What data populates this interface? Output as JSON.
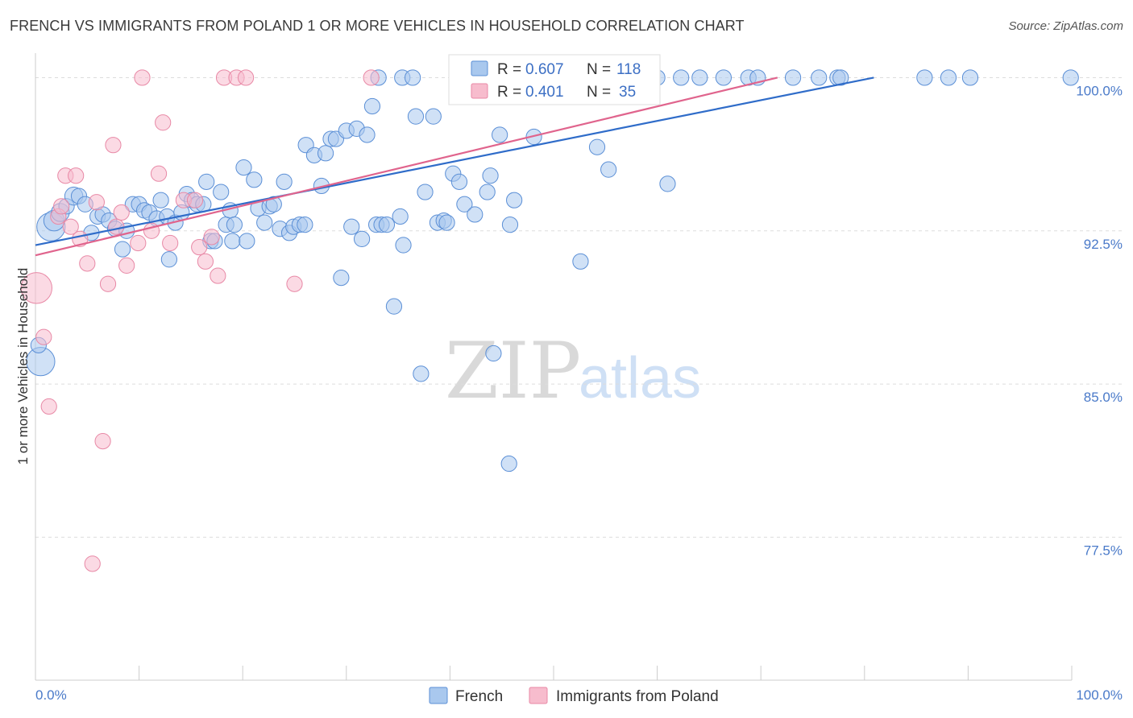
{
  "title": "FRENCH VS IMMIGRANTS FROM POLAND 1 OR MORE VEHICLES IN HOUSEHOLD CORRELATION CHART",
  "source": "Source: ZipAtlas.com",
  "watermark": {
    "zip": "ZIP",
    "atlas": "atlas"
  },
  "legend": {
    "r_label": "R =",
    "n_label": "N =",
    "french": {
      "r": "0.607",
      "n": "118"
    },
    "poland": {
      "r": "0.401",
      "n": "35"
    }
  },
  "colors": {
    "french_fill": "#a9c8ee",
    "french_stroke": "#5b8fd6",
    "french_line": "#2f6cc9",
    "poland_fill": "#f7bccd",
    "poland_stroke": "#e889a6",
    "poland_line": "#e0648d",
    "grid": "#dddddd",
    "axis_text": "#4a7ac9"
  },
  "chart_data": {
    "type": "scatter",
    "title": "FRENCH VS IMMIGRANTS FROM POLAND 1 OR MORE VEHICLES IN HOUSEHOLD CORRELATION CHART",
    "xlabel": "",
    "ylabel": "1 or more Vehicles in Household",
    "xlim": [
      0,
      100
    ],
    "ylim": [
      70.5,
      101.2
    ],
    "x_tick_labels": {
      "min": "0.0%",
      "max": "100.0%"
    },
    "y_ticks": [
      {
        "value": 100.0,
        "label": "100.0%"
      },
      {
        "value": 92.5,
        "label": "92.5%"
      },
      {
        "value": 85.0,
        "label": "85.0%"
      },
      {
        "value": 77.5,
        "label": "77.5%"
      }
    ],
    "grid": true,
    "legend_position": "top-center",
    "series": [
      {
        "name": "French",
        "trendline": {
          "x": [
            0,
            80.9
          ],
          "y": [
            91.8,
            100.0
          ]
        },
        "points": [
          [
            0.5,
            86.1,
            2.2
          ],
          [
            0.3,
            86.9,
            1.2
          ],
          [
            1.5,
            92.7,
            2.2
          ],
          [
            1.8,
            93.0,
            1.6
          ],
          [
            2.4,
            93.4,
            1.4
          ],
          [
            3.0,
            93.7,
            1.2
          ],
          [
            3.7,
            94.2,
            1.4
          ],
          [
            4.2,
            94.2,
            1.2
          ],
          [
            4.8,
            93.8,
            1.2
          ],
          [
            5.4,
            92.4,
            1.2
          ],
          [
            6.0,
            93.2,
            1.2
          ],
          [
            6.5,
            93.3,
            1.2
          ],
          [
            7.1,
            93.0,
            1.2
          ],
          [
            7.7,
            92.6,
            1.2
          ],
          [
            8.4,
            91.6,
            1.2
          ],
          [
            8.8,
            92.5,
            1.2
          ],
          [
            9.4,
            93.8,
            1.2
          ],
          [
            10.0,
            93.8,
            1.2
          ],
          [
            10.5,
            93.5,
            1.2
          ],
          [
            11.0,
            93.4,
            1.2
          ],
          [
            11.7,
            93.1,
            1.2
          ],
          [
            12.1,
            94.0,
            1.2
          ],
          [
            12.7,
            93.2,
            1.2
          ],
          [
            12.9,
            91.1,
            1.2
          ],
          [
            13.5,
            92.9,
            1.2
          ],
          [
            14.1,
            93.4,
            1.2
          ],
          [
            14.6,
            94.3,
            1.2
          ],
          [
            15.1,
            94.0,
            1.2
          ],
          [
            15.6,
            93.8,
            1.2
          ],
          [
            16.2,
            93.8,
            1.2
          ],
          [
            16.5,
            94.9,
            1.2
          ],
          [
            16.9,
            92.0,
            1.2
          ],
          [
            17.3,
            92.0,
            1.2
          ],
          [
            17.9,
            94.4,
            1.2
          ],
          [
            18.4,
            92.8,
            1.2
          ],
          [
            18.8,
            93.5,
            1.2
          ],
          [
            19.2,
            92.8,
            1.2
          ],
          [
            19.0,
            92.0,
            1.2
          ],
          [
            20.1,
            95.6,
            1.2
          ],
          [
            20.4,
            92.0,
            1.2
          ],
          [
            21.1,
            95.0,
            1.2
          ],
          [
            21.5,
            93.6,
            1.2
          ],
          [
            22.1,
            92.9,
            1.2
          ],
          [
            22.6,
            93.7,
            1.2
          ],
          [
            23.0,
            93.8,
            1.2
          ],
          [
            23.6,
            92.6,
            1.2
          ],
          [
            24.0,
            94.9,
            1.2
          ],
          [
            24.5,
            92.4,
            1.2
          ],
          [
            24.9,
            92.7,
            1.2
          ],
          [
            25.5,
            92.8,
            1.2
          ],
          [
            26.0,
            92.8,
            1.2
          ],
          [
            26.1,
            96.7,
            1.2
          ],
          [
            26.9,
            96.2,
            1.2
          ],
          [
            27.6,
            94.7,
            1.2
          ],
          [
            28.0,
            96.3,
            1.2
          ],
          [
            28.5,
            97.0,
            1.2
          ],
          [
            29.0,
            97.0,
            1.2
          ],
          [
            29.5,
            90.2,
            1.2
          ],
          [
            30.0,
            97.4,
            1.2
          ],
          [
            30.5,
            92.7,
            1.2
          ],
          [
            31.0,
            97.5,
            1.2
          ],
          [
            31.5,
            92.1,
            1.2
          ],
          [
            32.0,
            97.2,
            1.2
          ],
          [
            32.5,
            98.6,
            1.2
          ],
          [
            32.9,
            92.8,
            1.2
          ],
          [
            33.4,
            92.8,
            1.2
          ],
          [
            33.9,
            92.8,
            1.2
          ],
          [
            33.1,
            100.0,
            1.2
          ],
          [
            34.6,
            88.8,
            1.2
          ],
          [
            35.2,
            93.2,
            1.2
          ],
          [
            35.5,
            91.8,
            1.2
          ],
          [
            35.4,
            100.0,
            1.2
          ],
          [
            36.7,
            98.1,
            1.2
          ],
          [
            36.4,
            100.0,
            1.2
          ],
          [
            37.2,
            85.5,
            1.2
          ],
          [
            37.6,
            94.4,
            1.2
          ],
          [
            38.4,
            98.1,
            1.2
          ],
          [
            38.8,
            92.9,
            1.2
          ],
          [
            39.4,
            93.0,
            1.2
          ],
          [
            39.7,
            92.9,
            1.2
          ],
          [
            40.3,
            95.3,
            1.2
          ],
          [
            40.9,
            94.9,
            1.2
          ],
          [
            41.4,
            93.8,
            1.2
          ],
          [
            41.6,
            100.0,
            1.2
          ],
          [
            42.4,
            93.3,
            1.2
          ],
          [
            42.3,
            100.0,
            1.2
          ],
          [
            43.6,
            94.4,
            1.2
          ],
          [
            43.9,
            95.2,
            1.2
          ],
          [
            44.2,
            86.5,
            1.2
          ],
          [
            44.8,
            97.2,
            1.2
          ],
          [
            45.8,
            92.8,
            1.2
          ],
          [
            46.2,
            94.0,
            1.2
          ],
          [
            46.4,
            100.0,
            1.2
          ],
          [
            45.7,
            81.1,
            1.2
          ],
          [
            48.1,
            97.1,
            1.2
          ],
          [
            47.8,
            100.0,
            1.2
          ],
          [
            49.0,
            100.0,
            1.2
          ],
          [
            50.9,
            100.0,
            1.2
          ],
          [
            52.3,
            100.0,
            1.2
          ],
          [
            52.6,
            91.0,
            1.2
          ],
          [
            54.2,
            96.6,
            1.2
          ],
          [
            55.3,
            95.5,
            1.2
          ],
          [
            54.7,
            100.0,
            1.2
          ],
          [
            56.3,
            100.0,
            1.2
          ],
          [
            58.3,
            100.0,
            1.2
          ],
          [
            60.0,
            100.0,
            1.2
          ],
          [
            61.0,
            94.8,
            1.2
          ],
          [
            62.3,
            100.0,
            1.2
          ],
          [
            64.1,
            100.0,
            1.2
          ],
          [
            66.4,
            100.0,
            1.2
          ],
          [
            68.8,
            100.0,
            1.2
          ],
          [
            69.7,
            100.0,
            1.2
          ],
          [
            73.1,
            100.0,
            1.2
          ],
          [
            75.6,
            100.0,
            1.2
          ],
          [
            77.4,
            100.0,
            1.2
          ],
          [
            77.7,
            100.0,
            1.2
          ],
          [
            85.8,
            100.0,
            1.2
          ],
          [
            88.1,
            100.0,
            1.2
          ],
          [
            90.2,
            100.0,
            1.2
          ],
          [
            99.9,
            100.0,
            1.2
          ]
        ]
      },
      {
        "name": "Immigrants from Poland",
        "trendline": {
          "x": [
            0,
            71.6
          ],
          "y": [
            91.3,
            100.0
          ]
        },
        "points": [
          [
            0.1,
            89.7,
            2.4
          ],
          [
            0.8,
            87.3,
            1.2
          ],
          [
            1.3,
            83.9,
            1.2
          ],
          [
            2.2,
            93.2,
            1.2
          ],
          [
            2.5,
            93.7,
            1.2
          ],
          [
            2.9,
            95.2,
            1.2
          ],
          [
            3.4,
            92.7,
            1.2
          ],
          [
            3.9,
            95.2,
            1.2
          ],
          [
            4.3,
            92.1,
            1.2
          ],
          [
            5.0,
            90.9,
            1.2
          ],
          [
            5.5,
            76.2,
            1.2
          ],
          [
            5.9,
            93.9,
            1.2
          ],
          [
            6.5,
            82.2,
            1.2
          ],
          [
            7.0,
            89.9,
            1.2
          ],
          [
            7.5,
            96.7,
            1.2
          ],
          [
            7.8,
            92.7,
            1.2
          ],
          [
            8.3,
            93.4,
            1.2
          ],
          [
            8.8,
            90.8,
            1.2
          ],
          [
            9.9,
            91.9,
            1.2
          ],
          [
            10.3,
            100.0,
            1.2
          ],
          [
            11.2,
            92.5,
            1.2
          ],
          [
            11.9,
            95.3,
            1.2
          ],
          [
            12.3,
            97.8,
            1.2
          ],
          [
            13.0,
            91.9,
            1.2
          ],
          [
            14.3,
            94.0,
            1.2
          ],
          [
            15.4,
            94.0,
            1.2
          ],
          [
            15.8,
            91.7,
            1.2
          ],
          [
            16.4,
            91.0,
            1.2
          ],
          [
            17.0,
            92.2,
            1.2
          ],
          [
            17.6,
            90.3,
            1.2
          ],
          [
            18.2,
            100.0,
            1.2
          ],
          [
            19.4,
            100.0,
            1.2
          ],
          [
            20.3,
            100.0,
            1.2
          ],
          [
            25.0,
            89.9,
            1.2
          ],
          [
            32.4,
            100.0,
            1.2
          ]
        ]
      }
    ]
  },
  "bottom_legend": {
    "french": "French",
    "poland": "Immigrants from Poland"
  }
}
